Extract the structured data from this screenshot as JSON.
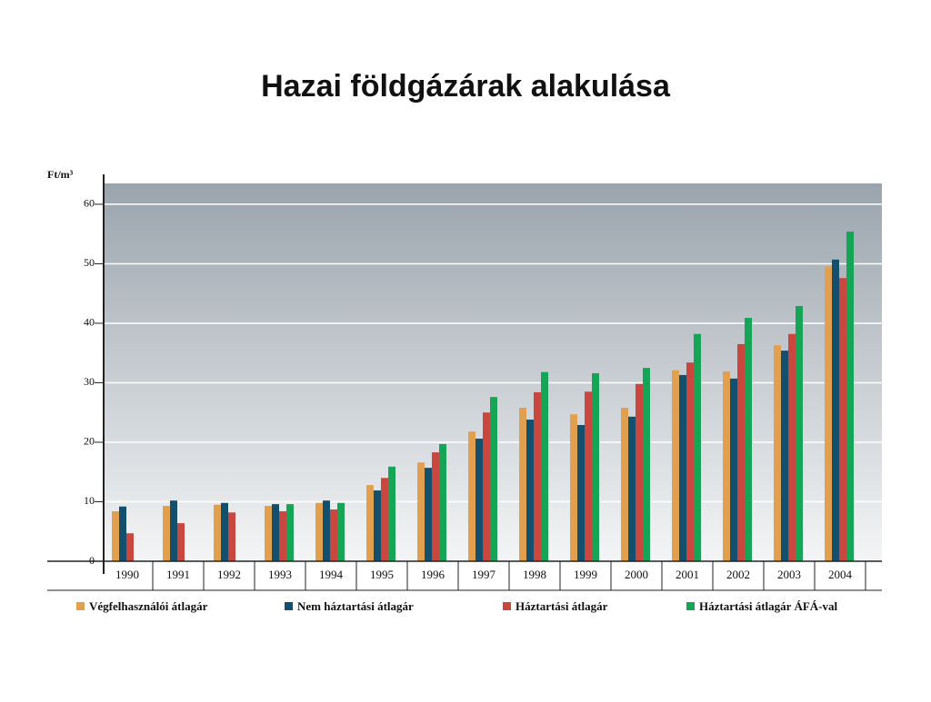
{
  "chart_data": {
    "type": "bar",
    "title": "Hazai földgázárak alakulása",
    "y_axis_label": "Ft/m³",
    "categories": [
      "1990",
      "1991",
      "1992",
      "1993",
      "1994",
      "1995",
      "1996",
      "1997",
      "1998",
      "1999",
      "2000",
      "2001",
      "2002",
      "2003",
      "2004"
    ],
    "series": [
      {
        "name": "Végfelhasználói átlagár",
        "color": "#e0a050",
        "values": [
          8.4,
          9.3,
          9.5,
          9.3,
          9.8,
          12.8,
          16.6,
          21.8,
          25.8,
          24.7,
          25.8,
          32.1,
          31.9,
          36.3,
          49.5
        ]
      },
      {
        "name": "Nem háztartási átlagár",
        "color": "#154f6e",
        "values": [
          9.2,
          10.2,
          9.8,
          9.6,
          10.2,
          11.9,
          15.7,
          20.6,
          23.8,
          22.9,
          24.3,
          31.3,
          30.7,
          35.4,
          50.7
        ]
      },
      {
        "name": "Háztartási átlagár",
        "color": "#c8473f",
        "values": [
          4.7,
          6.4,
          8.2,
          8.4,
          8.7,
          14.0,
          18.3,
          25.0,
          28.4,
          28.5,
          29.8,
          33.4,
          36.5,
          38.2,
          47.6
        ]
      },
      {
        "name": "Háztartási átlagár ÁFÁ-val",
        "color": "#16a556",
        "values": [
          null,
          null,
          null,
          9.6,
          9.8,
          15.9,
          19.7,
          27.6,
          31.8,
          31.6,
          32.5,
          38.2,
          40.9,
          42.9,
          55.4
        ]
      }
    ],
    "ylim": [
      0,
      63.5
    ],
    "yticks": [
      0,
      10,
      20,
      30,
      40,
      50,
      60
    ],
    "grid": true
  }
}
